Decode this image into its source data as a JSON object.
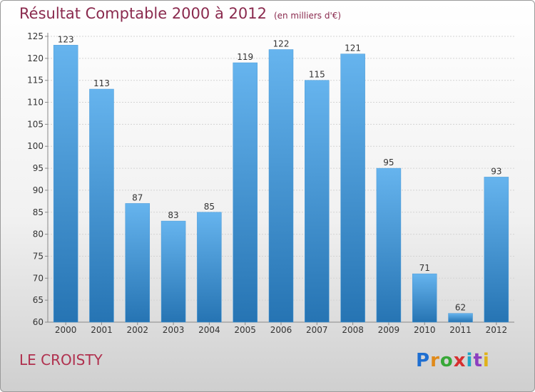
{
  "header": {
    "title": "Résultat Comptable 2000 à 2012",
    "subtitle": "(en milliers d'€)"
  },
  "footer": {
    "place": "LE CROISTY",
    "logo": "Proxiti"
  },
  "colors": {
    "bar_light": "#62b0ea",
    "bar_dark": "#2a7ab9",
    "title": "#8a2a4e"
  },
  "chart_data": {
    "type": "bar",
    "title": "Résultat Comptable 2000 à 2012",
    "subtitle": "(en milliers d'€)",
    "categories": [
      "2000",
      "2001",
      "2002",
      "2003",
      "2004",
      "2005",
      "2006",
      "2007",
      "2008",
      "2009",
      "2010",
      "2011",
      "2012"
    ],
    "values": [
      123,
      113,
      87,
      83,
      85,
      119,
      122,
      115,
      121,
      95,
      71,
      62,
      93
    ],
    "ylim": [
      60,
      125
    ],
    "yticks": [
      60,
      65,
      70,
      75,
      80,
      85,
      90,
      95,
      100,
      105,
      110,
      115,
      120,
      125
    ],
    "grid": true
  }
}
